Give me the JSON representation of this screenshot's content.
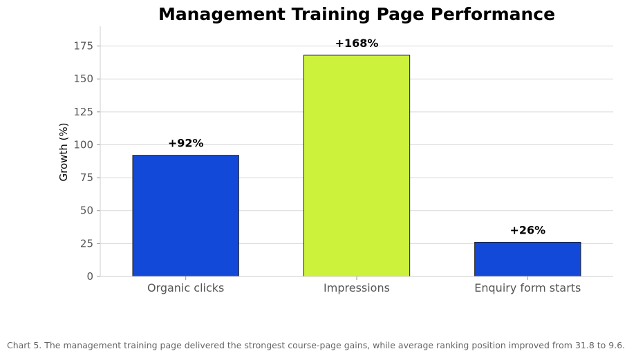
{
  "chart_data": {
    "type": "bar",
    "title": "Management Training Page Performance",
    "xlabel": "",
    "ylabel": "Growth (%)",
    "ylim": [
      0,
      190
    ],
    "yticks": [
      0,
      25,
      50,
      75,
      100,
      125,
      150,
      175
    ],
    "grid": true,
    "categories": [
      "Organic clicks",
      "Impressions",
      "Enquiry form starts"
    ],
    "values": [
      92,
      168,
      26
    ],
    "data_labels": [
      "+92%",
      "+168%",
      "+26%"
    ],
    "colors": [
      "#1349d8",
      "#ccf23c",
      "#1349d8"
    ]
  },
  "caption": "Chart 5. The management training page delivered the strongest course-page gains, while average ranking position improved from 31.8 to 9.6."
}
